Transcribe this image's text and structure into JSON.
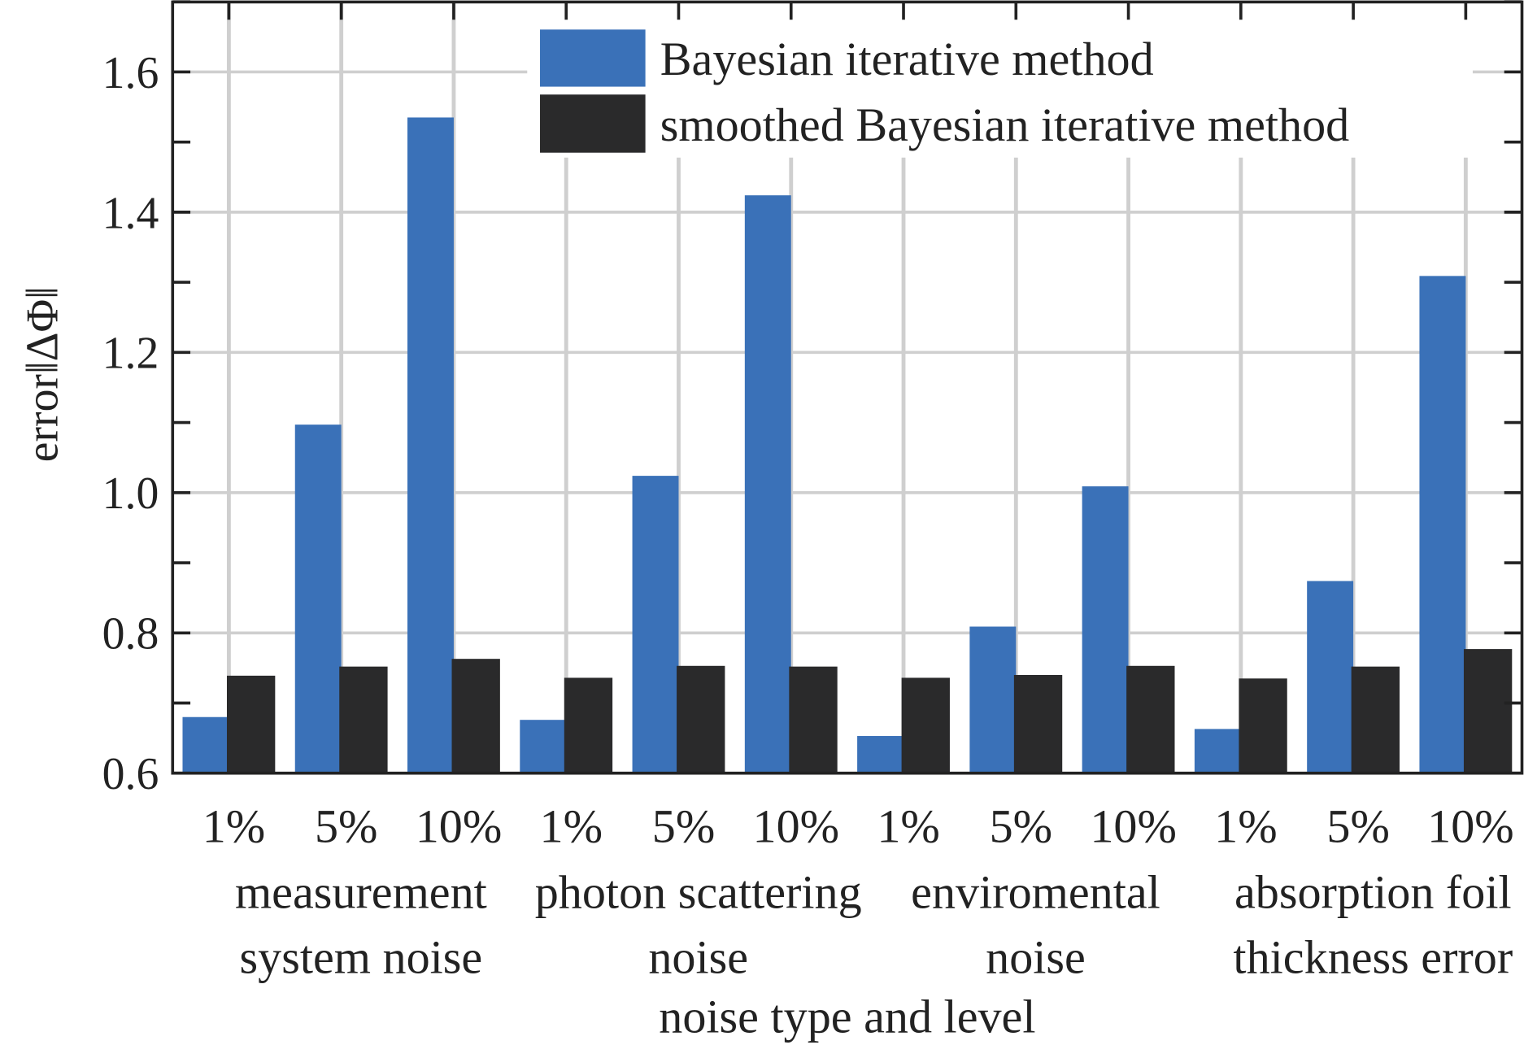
{
  "chart_data": {
    "type": "bar",
    "title": "",
    "xlabel": "noise type and level",
    "ylabel": "error‖ΔΦ‖",
    "ylim": [
      0.6,
      1.7
    ],
    "yticks": [
      "0.6",
      "0.8",
      "1.0",
      "1.2",
      "1.4",
      "1.6"
    ],
    "ytick_values": [
      0.6,
      0.8,
      1.0,
      1.2,
      1.4,
      1.6
    ],
    "grid": true,
    "legend_position": "top-right",
    "categories": [
      "1%",
      "5%",
      "10%",
      "1%",
      "5%",
      "10%",
      "1%",
      "5%",
      "10%",
      "1%",
      "5%",
      "10%"
    ],
    "groups": [
      {
        "lines": [
          "measurement",
          "system noise"
        ]
      },
      {
        "lines": [
          "photon scattering",
          "noise"
        ]
      },
      {
        "lines": [
          "enviromental",
          "noise"
        ]
      },
      {
        "lines": [
          "absorption foil",
          "thickness error"
        ]
      }
    ],
    "series": [
      {
        "name": "Bayesian iterative method",
        "color": "#3a71b8",
        "values": [
          0.68,
          1.097,
          1.535,
          0.676,
          1.024,
          1.424,
          0.653,
          0.809,
          1.009,
          0.663,
          0.874,
          1.309
        ]
      },
      {
        "name": "smoothed Bayesian iterative method",
        "color": "#2a2a2b",
        "values": [
          0.739,
          0.752,
          0.763,
          0.736,
          0.753,
          0.752,
          0.736,
          0.74,
          0.753,
          0.735,
          0.752,
          0.777
        ]
      }
    ]
  }
}
